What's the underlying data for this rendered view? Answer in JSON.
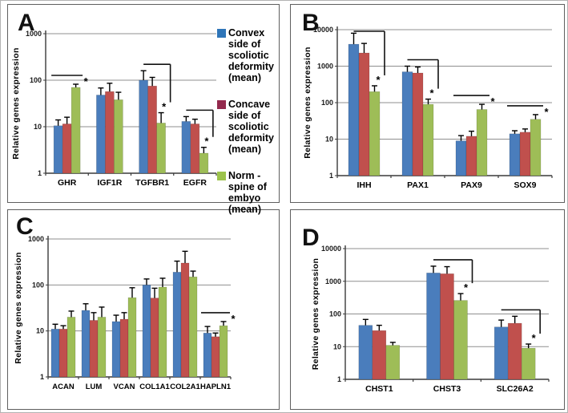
{
  "figure": {
    "panel_letters": [
      "A",
      "B",
      "C",
      "D"
    ],
    "colors": {
      "bar_convex": "#4a7dbc",
      "bar_concave": "#c0504d",
      "bar_norm": "#9ebd57",
      "legend_convex": "#2e75b8",
      "legend_concave": "#93294d",
      "legend_norm": "#9cc34b",
      "grid": "#8f8f8f",
      "axis": "#3a3a3a",
      "error_bar": "#000000",
      "sig_line": "#111111"
    }
  },
  "legend": {
    "position": "right-of-panel-A",
    "items": [
      {
        "label": "Convex side of scoliotic deformity (mean)",
        "color": "#2e75b8"
      },
      {
        "label": "Concave side of scoliotic deformity (mean)",
        "color": "#93294d"
      },
      {
        "label": "Norm - spine of embyo (mean)",
        "color": "#9cc34b"
      }
    ]
  },
  "chart_data": [
    {
      "panel": "A",
      "type": "bar",
      "yscale": "log",
      "ylim": [
        1,
        1000
      ],
      "yticks": [
        1,
        10,
        100,
        1000
      ],
      "ylabel": "Relative genes expression",
      "grid": true,
      "legend_position": "right",
      "categories": [
        "GHR",
        "IGF1R",
        "TGFBR1",
        "EGFR"
      ],
      "series": [
        {
          "name": "Convex side of scoliotic deformity (mean)",
          "color": "#4a7dbc",
          "values": [
            10.5,
            48,
            100,
            13
          ],
          "errors_top": [
            14,
            68,
            160,
            16.5
          ]
        },
        {
          "name": "Concave side of scoliotic deformity (mean)",
          "color": "#c0504d",
          "values": [
            11.5,
            57,
            75,
            11.5
          ],
          "errors_top": [
            16,
            86,
            115,
            14.5
          ]
        },
        {
          "name": "Norm - spine of embyo (mean)",
          "color": "#9ebd57",
          "values": [
            70,
            38,
            12,
            2.7
          ],
          "errors_top": [
            82,
            55,
            20,
            3.6
          ]
        }
      ],
      "significance": [
        {
          "category": "GHR",
          "style": "line",
          "from": 0,
          "to": 2,
          "label": "*"
        },
        {
          "category": "TGFBR1",
          "style": "drop",
          "from": 0,
          "to": 2,
          "label": "*"
        },
        {
          "category": "EGFR",
          "style": "drop",
          "from": 0,
          "to": 2,
          "label": "*"
        }
      ]
    },
    {
      "panel": "B",
      "type": "bar",
      "yscale": "log",
      "ylim": [
        1,
        10000
      ],
      "yticks": [
        1,
        10,
        100,
        1000,
        10000
      ],
      "ylabel": "Relative genes expression",
      "grid": true,
      "categories": [
        "IHH",
        "PAX1",
        "PAX9",
        "SOX9"
      ],
      "series": [
        {
          "name": "Convex side of scoliotic deformity (mean)",
          "color": "#4a7dbc",
          "values": [
            4000,
            700,
            9,
            14
          ],
          "errors_top": [
            8000,
            1000,
            12.5,
            17
          ]
        },
        {
          "name": "Concave side of scoliotic deformity (mean)",
          "color": "#c0504d",
          "values": [
            2300,
            650,
            12,
            15.5
          ],
          "errors_top": [
            4200,
            950,
            16.5,
            19
          ]
        },
        {
          "name": "Norm - spine of embyo (mean)",
          "color": "#9ebd57",
          "values": [
            200,
            90,
            65,
            35
          ],
          "errors_top": [
            290,
            125,
            90,
            47
          ]
        }
      ],
      "significance": [
        {
          "category": "IHH",
          "style": "drop",
          "from": 0,
          "to": 2,
          "label": "*"
        },
        {
          "category": "PAX1",
          "style": "drop",
          "from": 0,
          "to": 2,
          "label": "*"
        },
        {
          "category": "PAX9",
          "style": "line",
          "from": 0,
          "to": 2,
          "label": "*"
        },
        {
          "category": "SOX9",
          "style": "line",
          "from": 0,
          "to": 2,
          "label": "*"
        }
      ]
    },
    {
      "panel": "C",
      "type": "bar",
      "yscale": "log",
      "ylim": [
        1,
        1000
      ],
      "yticks": [
        1,
        10,
        100,
        1000
      ],
      "ylabel": "Relative genes expression",
      "grid": true,
      "categories": [
        "ACAN",
        "LUM",
        "VCAN",
        "COL1A1",
        "COL2A1",
        "HAPLN1"
      ],
      "series": [
        {
          "name": "Convex side of scoliotic deformity (mean)",
          "color": "#4a7dbc",
          "values": [
            11,
            28,
            16,
            100,
            190,
            9
          ],
          "errors_top": [
            14,
            39,
            22,
            135,
            330,
            12.5
          ]
        },
        {
          "name": "Concave side of scoliotic deformity (mean)",
          "color": "#c0504d",
          "values": [
            11,
            17,
            18,
            52,
            300,
            7.5
          ],
          "errors_top": [
            13,
            25,
            25,
            85,
            540,
            9
          ]
        },
        {
          "name": "Norm - spine of embyo (mean)",
          "color": "#9ebd57",
          "values": [
            20,
            20,
            53,
            90,
            150,
            13
          ],
          "errors_top": [
            27,
            33,
            87,
            140,
            200,
            16
          ]
        }
      ],
      "significance": [
        {
          "category": "HAPLN1",
          "style": "line",
          "from": 0,
          "to": 2,
          "label": "*"
        }
      ]
    },
    {
      "panel": "D",
      "type": "bar",
      "yscale": "log",
      "ylim": [
        1,
        10000
      ],
      "yticks": [
        1,
        10,
        100,
        1000,
        10000
      ],
      "ylabel": "Relative genes expression",
      "grid": true,
      "categories": [
        "CHST1",
        "CHST3",
        "SLC26A2"
      ],
      "series": [
        {
          "name": "Convex side of scoliotic deformity (mean)",
          "color": "#4a7dbc",
          "values": [
            45,
            1800,
            40
          ],
          "errors_top": [
            68,
            2900,
            65
          ]
        },
        {
          "name": "Concave side of scoliotic deformity (mean)",
          "color": "#c0504d",
          "values": [
            31,
            1700,
            52
          ],
          "errors_top": [
            45,
            2800,
            85
          ]
        },
        {
          "name": "Norm - spine of embyo (mean)",
          "color": "#9ebd57",
          "values": [
            11,
            260,
            9
          ],
          "errors_top": [
            13.5,
            420,
            12
          ]
        }
      ],
      "significance": [
        {
          "category": "CHST3",
          "style": "drop",
          "from": 0,
          "to": 2,
          "label": "*"
        },
        {
          "category": "SLC26A2",
          "style": "drop",
          "from": 0,
          "to": 2,
          "label": "*"
        }
      ]
    }
  ]
}
